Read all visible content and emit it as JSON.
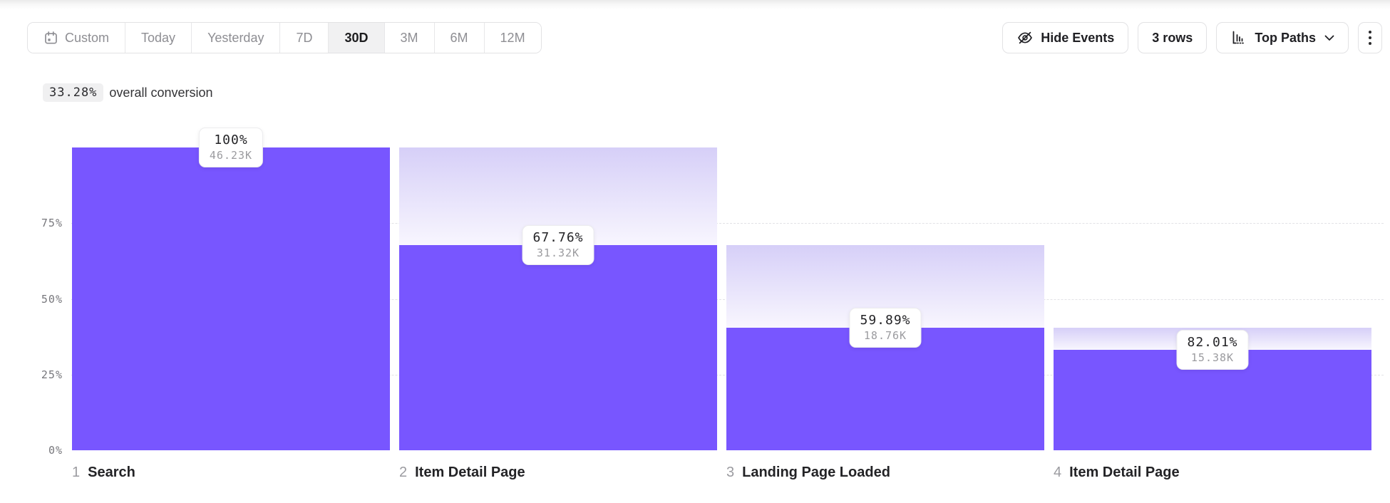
{
  "toolbar": {
    "date_ranges": [
      {
        "label": "Custom",
        "selected": false
      },
      {
        "label": "Today",
        "selected": false
      },
      {
        "label": "Yesterday",
        "selected": false
      },
      {
        "label": "7D",
        "selected": false
      },
      {
        "label": "30D",
        "selected": true
      },
      {
        "label": "3M",
        "selected": false
      },
      {
        "label": "6M",
        "selected": false
      },
      {
        "label": "12M",
        "selected": false
      }
    ],
    "hide_events_label": "Hide Events",
    "rows_label": "3 rows",
    "top_paths_label": "Top Paths",
    "icons": {
      "custom": "calendar-icon",
      "hide_events": "eye-off-icon",
      "top_paths": "bar-chart-icon",
      "top_paths_caret": "chevron-down-icon",
      "more": "kebab-menu-icon"
    }
  },
  "summary": {
    "value": "33.28%",
    "label": "overall conversion"
  },
  "chart_data": {
    "type": "bar",
    "subtype": "funnel",
    "title": "33.28% overall conversion",
    "ylim": [
      0,
      100
    ],
    "yticks": [
      {
        "label": "75%",
        "value": 75
      },
      {
        "label": "50%",
        "value": 50
      },
      {
        "label": "25%",
        "value": 25
      },
      {
        "label": "0%",
        "value": 0
      }
    ],
    "gridline_values": [
      75,
      50,
      25
    ],
    "steps": [
      {
        "index": "1",
        "name": "Search",
        "conversion_pct": "100%",
        "count": "46.23K",
        "overall_pct": 100,
        "prev_overall_pct": 100
      },
      {
        "index": "2",
        "name": "Item Detail Page",
        "conversion_pct": "67.76%",
        "count": "31.32K",
        "overall_pct": 67.76,
        "prev_overall_pct": 100
      },
      {
        "index": "3",
        "name": "Landing Page Loaded",
        "conversion_pct": "59.89%",
        "count": "18.76K",
        "overall_pct": 40.58,
        "prev_overall_pct": 67.76
      },
      {
        "index": "4",
        "name": "Item Detail Page",
        "conversion_pct": "82.01%",
        "count": "15.38K",
        "overall_pct": 33.27,
        "prev_overall_pct": 40.58
      }
    ],
    "colors": {
      "bar": "#7856ff",
      "ghost_top": "#d6cff8",
      "ghost_bottom": "#f8f6fe",
      "grid": "#e2e2e6"
    }
  }
}
